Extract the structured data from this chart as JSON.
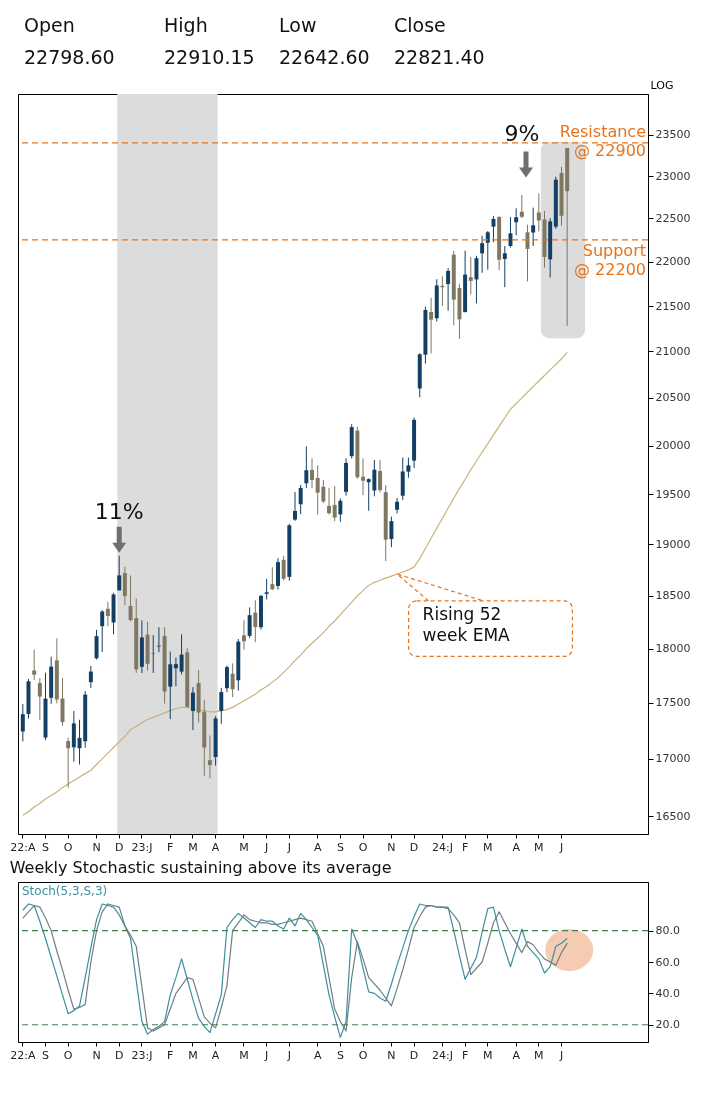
{
  "chart_data": [
    {
      "type": "candlestick",
      "ylabel": "LOG",
      "annotations": [
        "Open",
        "High",
        "Low",
        "Close",
        "22798.60",
        "22910.15",
        "22642.60",
        "22821.40",
        "9%",
        "Rising 52 week EMA",
        {
          "text": "11%",
          "x": "D",
          "y": 18888
        }
      ],
      "categories": [
        "22:A",
        null,
        null,
        null,
        "S",
        null,
        null,
        null,
        "O",
        null,
        null,
        null,
        null,
        "N",
        null,
        null,
        null,
        "D",
        null,
        null,
        null,
        "23:J",
        null,
        null,
        null,
        null,
        "F",
        null,
        null,
        null,
        "M",
        null,
        null,
        null,
        "A",
        null,
        null,
        null,
        null,
        "M",
        null,
        null,
        null,
        "J",
        null,
        null,
        null,
        "J",
        null,
        null,
        null,
        null,
        "A",
        null,
        null,
        null,
        "S",
        null,
        null,
        null,
        "O",
        null,
        null,
        null,
        null,
        "N",
        null,
        null,
        null,
        "D",
        null,
        null,
        null,
        null,
        "24:J",
        null,
        null,
        null,
        "F",
        null,
        null,
        null,
        "M",
        null,
        null,
        null,
        null,
        "A",
        null,
        null,
        null,
        "M",
        null,
        null,
        null,
        "J",
        null
      ],
      "ohlc": [
        [
          17243,
          17490,
          17154,
          17398
        ],
        [
          17401,
          17719,
          17359,
          17698
        ],
        [
          17797,
          17992,
          17710,
          17758
        ],
        [
          17682,
          17727,
          17345,
          17558
        ],
        [
          17189,
          17777,
          17166,
          17539
        ],
        [
          17547,
          17925,
          17492,
          17833
        ],
        [
          17891,
          18096,
          17497,
          17531
        ],
        [
          17540,
          17727,
          17292,
          17327
        ],
        [
          17157,
          17188,
          16747,
          17094
        ],
        [
          17102,
          17428,
          16975,
          17315
        ],
        [
          17094,
          17348,
          16950,
          17186
        ],
        [
          17156,
          17607,
          17098,
          17576
        ],
        [
          17690,
          17838,
          17637,
          17787
        ],
        [
          17910,
          18176,
          17899,
          18117
        ],
        [
          18211,
          18363,
          17969,
          18350
        ],
        [
          18376,
          18442,
          18209,
          18308
        ],
        [
          18246,
          18529,
          18134,
          18513
        ],
        [
          18552,
          18888,
          18552,
          18697
        ],
        [
          18719,
          18781,
          18410,
          18497
        ],
        [
          18402,
          18696,
          18256,
          18269
        ],
        [
          18288,
          18473,
          17775,
          17807
        ],
        [
          17831,
          18266,
          17774,
          18105
        ],
        [
          18131,
          18252,
          17796,
          17859
        ],
        [
          17953,
          18127,
          17775,
          17957
        ],
        [
          18020,
          18201,
          17967,
          18027
        ],
        [
          18119,
          18201,
          17494,
          17604
        ],
        [
          17649,
          17972,
          17354,
          17854
        ],
        [
          17818,
          17917,
          17652,
          17856
        ],
        [
          17787,
          18134,
          17761,
          17944
        ],
        [
          17965,
          18004,
          17456,
          17466
        ],
        [
          17428,
          17644,
          17256,
          17594
        ],
        [
          17681,
          17800,
          17324,
          17413
        ],
        [
          17421,
          17529,
          16851,
          17100
        ],
        [
          16988,
          17207,
          16829,
          16945
        ],
        [
          17016,
          17381,
          16940,
          17360
        ],
        [
          17428,
          17638,
          17312,
          17599
        ],
        [
          17634,
          17842,
          17598,
          17828
        ],
        [
          17767,
          17863,
          17553,
          17624
        ],
        [
          17707,
          18089,
          17613,
          18065
        ],
        [
          18124,
          18267,
          17990,
          18069
        ],
        [
          18120,
          18389,
          18101,
          18315
        ],
        [
          18339,
          18458,
          18060,
          18203
        ],
        [
          18201,
          18508,
          18179,
          18499
        ],
        [
          18519,
          18663,
          18465,
          18534
        ],
        [
          18612,
          18777,
          18555,
          18563
        ],
        [
          18595,
          18864,
          18560,
          18826
        ],
        [
          18849,
          18887,
          18647,
          18665
        ],
        [
          18683,
          19201,
          18646,
          19189
        ],
        [
          19246,
          19523,
          19234,
          19332
        ],
        [
          19400,
          19595,
          19302,
          19564
        ],
        [
          19612,
          19991,
          19562,
          19745
        ],
        [
          19748,
          19867,
          19563,
          19646
        ],
        [
          19666,
          19795,
          19296,
          19517
        ],
        [
          19576,
          19645,
          19412,
          19428
        ],
        [
          19383,
          19566,
          19296,
          19310
        ],
        [
          19393,
          19584,
          19229,
          19266
        ],
        [
          19298,
          19458,
          19224,
          19435
        ],
        [
          19525,
          19867,
          19487,
          19820
        ],
        [
          19890,
          20222,
          19865,
          20192
        ],
        [
          20155,
          20195,
          19657,
          19674
        ],
        [
          19679,
          19867,
          19492,
          19638
        ],
        [
          19623,
          19662,
          19334,
          19654
        ],
        [
          19539,
          19850,
          19480,
          19751
        ],
        [
          19737,
          19849,
          19518,
          19543
        ],
        [
          19521,
          19593,
          18837,
          19047
        ],
        [
          19053,
          19276,
          18973,
          19230
        ],
        [
          19345,
          19464,
          19309,
          19425
        ],
        [
          19486,
          19875,
          19443,
          19732
        ],
        [
          19731,
          19876,
          19669,
          19795
        ],
        [
          19844,
          20292,
          19768,
          20268
        ],
        [
          20601,
          20980,
          20507,
          20969
        ],
        [
          20965,
          21493,
          20868,
          21457
        ],
        [
          21434,
          21593,
          20977,
          21349
        ],
        [
          21365,
          21801,
          21329,
          21731
        ],
        [
          21727,
          21834,
          21500,
          21711
        ],
        [
          21747,
          21928,
          21449,
          21895
        ],
        [
          22081,
          22124,
          21286,
          21572
        ],
        [
          21702,
          21750,
          21137,
          21353
        ],
        [
          21433,
          22127,
          21431,
          21854
        ],
        [
          21825,
          22054,
          21630,
          21783
        ],
        [
          21800,
          22068,
          21530,
          22041
        ],
        [
          22096,
          22298,
          21875,
          22213
        ],
        [
          22218,
          22353,
          21910,
          22339
        ],
        [
          22404,
          22526,
          22225,
          22494
        ],
        [
          22517,
          22527,
          21905,
          22023
        ],
        [
          22031,
          22180,
          21711,
          22097
        ],
        [
          22181,
          22516,
          22163,
          22327
        ],
        [
          22456,
          22619,
          22304,
          22514
        ],
        [
          22578,
          22775,
          22503,
          22519
        ],
        [
          22339,
          22427,
          21777,
          22147
        ],
        [
          22336,
          22626,
          22180,
          22420
        ],
        [
          22569,
          22795,
          22349,
          22476
        ],
        [
          22489,
          22588,
          21933,
          22055
        ],
        [
          22028,
          22502,
          21821,
          22466
        ],
        [
          22404,
          22993,
          22378,
          22957
        ],
        [
          23038,
          23111,
          22417,
          22531
        ],
        [
          23338,
          23338,
          21281,
          22821
        ]
      ],
      "colors": [
        "#123f63",
        "#123f63",
        "#7f7762",
        "#7f7762",
        "#123f63",
        "#123f63",
        "#7f7762",
        "#7f7762",
        "#7f7762",
        "#123f63",
        "#123f63",
        "#123f63",
        "#123f63",
        "#123f63",
        "#123f63",
        "#7f7762",
        "#123f63",
        "#123f63",
        "#7f7762",
        "#7f7762",
        "#7f7762",
        "#123f63",
        "#7f7762",
        "#123f63",
        "#123f63",
        "#7f7762",
        "#123f63",
        "#123f63",
        "#123f63",
        "#7f7762",
        "#123f63",
        "#7f7762",
        "#7f7762",
        "#7f7762",
        "#123f63",
        "#123f63",
        "#123f63",
        "#7f7762",
        "#123f63",
        "#7f7762",
        "#123f63",
        "#7f7762",
        "#123f63",
        "#123f63",
        "#7f7762",
        "#123f63",
        "#7f7762",
        "#123f63",
        "#123f63",
        "#123f63",
        "#123f63",
        "#7f7762",
        "#7f7762",
        "#7f7762",
        "#7f7762",
        "#7f7762",
        "#123f63",
        "#123f63",
        "#123f63",
        "#7f7762",
        "#7f7762",
        "#123f63",
        "#123f63",
        "#7f7762",
        "#7f7762",
        "#123f63",
        "#123f63",
        "#123f63",
        "#123f63",
        "#123f63",
        "#123f63",
        "#123f63",
        "#7f7762",
        "#123f63",
        "#7f7762",
        "#123f63",
        "#7f7762",
        "#7f7762",
        "#123f63",
        "#7f7762",
        "#123f63",
        "#123f63",
        "#123f63",
        "#123f63",
        "#7f7762",
        "#123f63",
        "#123f63",
        "#123f63",
        "#7f7762",
        "#7f7762",
        "#123f63",
        "#7f7762",
        "#7f7762",
        "#123f63",
        "#123f63",
        "#7f7762",
        "#7f7762"
      ],
      "series": [
        {
          "type": "line",
          "color": "#c9b27c",
          "values": [
            16510,
            16540,
            16580,
            16610,
            16650,
            16680,
            16710,
            16750,
            16780,
            16810,
            16840,
            16870,
            16900,
            16950,
            17000,
            17050,
            17100,
            17150,
            17200,
            17260,
            17290,
            17320,
            17350,
            17370,
            17390,
            17410,
            17430,
            17450,
            17460,
            17460,
            17450,
            17440,
            17430,
            17420,
            17420,
            17430,
            17440,
            17460,
            17490,
            17520,
            17550,
            17580,
            17620,
            17650,
            17690,
            17730,
            17780,
            17830,
            17890,
            17940,
            18000,
            18050,
            18100,
            18150,
            18210,
            18260,
            18320,
            18380,
            18440,
            18500,
            18550,
            18600,
            18630,
            18650,
            18670,
            18690,
            18710,
            18730,
            18750,
            18780,
            18860,
            18960,
            19060,
            19160,
            19260,
            19360,
            19460,
            19560,
            19650,
            19750,
            19840,
            19930,
            20020,
            20110,
            20200,
            20290,
            20380,
            20440,
            20500,
            20560,
            20620,
            20680,
            20740,
            20800,
            20860,
            20920,
            20990
          ]
        }
      ],
      "log": true,
      "ylim": [
        16350,
        24000
      ],
      "yticks": [
        16500,
        17000,
        17500,
        18000,
        18500,
        19000,
        19500,
        20000,
        20500,
        21000,
        21500,
        22000,
        22500,
        23000,
        23500
      ],
      "ref_lines": [
        {
          "axis": "y",
          "value": 23400,
          "label": "Resistance @ 22900",
          "color": "#e8731a",
          "line_style": "dashed"
        },
        {
          "axis": "y",
          "value": 22250,
          "label": "Support @ 22200",
          "color": "#e8731a",
          "line_style": "dashed"
        }
      ],
      "bands": [
        {
          "axis": "x",
          "from": "D",
          "to": "A",
          "color": "#dcdcdc"
        }
      ]
    },
    {
      "type": "line",
      "title": "Weekly Stochastic sustaining above its average",
      "categories": [
        "22:A",
        null,
        null,
        null,
        "S",
        null,
        null,
        null,
        "O",
        null,
        null,
        null,
        null,
        "N",
        null,
        null,
        null,
        "D",
        null,
        null,
        null,
        "23:J",
        null,
        null,
        null,
        null,
        "F",
        null,
        null,
        null,
        "M",
        null,
        null,
        null,
        "A",
        null,
        null,
        null,
        null,
        "M",
        null,
        null,
        null,
        "J",
        null,
        null,
        null,
        "J",
        null,
        null,
        null,
        null,
        "A",
        null,
        null,
        null,
        "S",
        null,
        null,
        null,
        "O",
        null,
        null,
        null,
        null,
        "N",
        null,
        null,
        null,
        "D",
        null,
        null,
        null,
        null,
        "24:J",
        null,
        null,
        null,
        "F",
        null,
        null,
        null,
        "M",
        null,
        null,
        null,
        null,
        "A",
        null,
        null,
        null,
        "M",
        null,
        null,
        null,
        "J",
        null
      ],
      "series": [
        {
          "name": "Stoch(5,3,S,3)",
          "color": "#3d8f9e",
          "values": [
            93,
            97,
            96,
            86,
            75,
            63,
            51,
            39,
            27,
            29,
            32,
            50,
            69,
            87,
            97,
            96,
            95,
            90,
            83,
            75,
            48,
            22,
            14,
            17,
            19,
            22,
            39,
            50,
            62,
            49,
            36,
            24,
            19,
            15,
            27,
            39,
            82,
            87,
            91,
            88,
            85,
            82,
            87,
            86,
            86,
            83,
            81,
            88,
            83,
            91,
            87,
            82,
            77,
            58,
            39,
            25,
            12,
            22,
            81,
            72,
            56,
            41,
            40,
            37,
            35,
            46,
            58,
            69,
            80,
            89,
            97,
            96,
            96,
            95,
            95,
            95,
            80,
            64,
            49,
            56,
            63,
            79,
            94,
            95,
            80,
            68,
            57,
            69,
            81,
            70,
            66,
            62,
            53,
            57,
            70,
            72,
            75
          ]
        },
        {
          "color": "#6e7f84",
          "values": [
            88,
            92,
            96,
            95,
            88,
            80,
            67,
            55,
            42,
            30,
            31,
            33,
            60,
            80,
            92,
            97,
            96,
            95,
            83,
            77,
            70,
            44,
            18,
            16,
            18,
            20,
            30,
            40,
            45,
            50,
            49,
            37,
            25,
            21,
            18,
            31,
            45,
            80,
            85,
            90,
            87,
            86,
            85,
            85,
            84,
            84,
            85,
            86,
            87,
            88,
            87,
            86,
            78,
            70,
            50,
            30,
            22,
            16,
            50,
            73,
            62,
            50,
            46,
            42,
            37,
            32,
            43,
            55,
            68,
            82,
            89,
            95,
            96,
            95,
            95,
            94,
            90,
            85,
            68,
            52,
            56,
            60,
            72,
            85,
            92,
            85,
            78,
            72,
            66,
            73,
            71,
            66,
            62,
            60,
            58,
            66,
            72
          ]
        }
      ],
      "ylim": [
        9,
        111
      ],
      "yticks": [
        {
          "value": 20,
          "label": "20.0"
        },
        {
          "value": 40,
          "label": "40.0"
        },
        {
          "value": 60,
          "label": "60.0"
        },
        {
          "value": 80,
          "label": "80.0"
        }
      ],
      "ref_lines": [
        {
          "axis": "y",
          "value": 80,
          "color": "#3f7f50",
          "line_style": "dashed"
        },
        {
          "axis": "y",
          "value": 20,
          "color": "#3f7f50",
          "line_style": "dashed"
        }
      ]
    }
  ]
}
